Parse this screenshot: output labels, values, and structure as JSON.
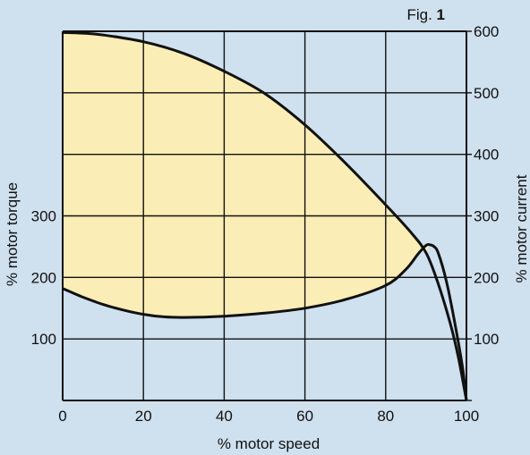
{
  "figure_label": {
    "prefix": "Fig.",
    "number": "1"
  },
  "chart_data": {
    "type": "line",
    "xlabel": "% motor speed",
    "ylabel_left": "% motor torque",
    "ylabel_right": "% motor current",
    "xlim": [
      0,
      100
    ],
    "ylim": [
      0,
      600
    ],
    "x_ticks": [
      "0",
      "20",
      "40",
      "60",
      "80",
      "100"
    ],
    "y_ticks_left": [
      "100",
      "200",
      "300"
    ],
    "y_ticks_right": [
      "100",
      "200",
      "300",
      "400",
      "500",
      "600"
    ],
    "grid": true,
    "fill_between_series": true,
    "colors": {
      "background": "#cfe0ee",
      "plot": "#cfe0ee",
      "fill": "#fbedb6",
      "line": "#111111",
      "grid": "#111111"
    },
    "series": [
      {
        "x": [
          0,
          5,
          10,
          20,
          30,
          40,
          50,
          60,
          70,
          80,
          86,
          90,
          93,
          96,
          98,
          100
        ],
        "values": [
          598,
          597,
          594,
          583,
          564,
          535,
          499,
          448,
          386,
          318,
          275,
          240,
          190,
          125,
          70,
          0
        ]
      },
      {
        "x": [
          0,
          5,
          10,
          15,
          20,
          25,
          30,
          40,
          50,
          60,
          70,
          80,
          85,
          88,
          90,
          91,
          92,
          93,
          95,
          97,
          99,
          100
        ],
        "values": [
          182,
          168,
          156,
          147,
          140,
          136,
          135,
          137,
          142,
          150,
          164,
          187,
          213,
          238,
          252,
          253,
          250,
          240,
          195,
          130,
          55,
          0
        ]
      }
    ]
  }
}
